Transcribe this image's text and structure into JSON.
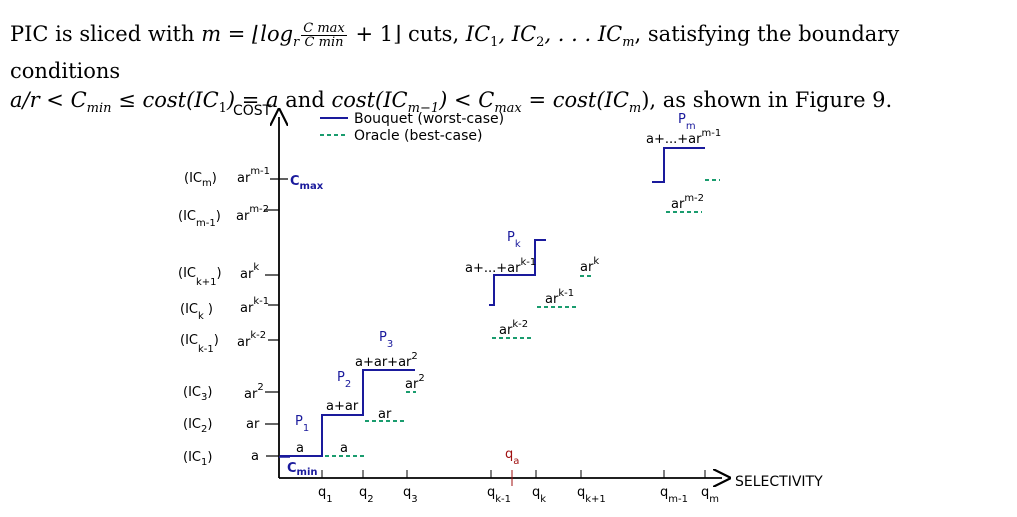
{
  "paragraph": {
    "t1": "PIC is sliced with ",
    "t2": "m = ⌊log",
    "t3": "r",
    "frac_num": "C max",
    "frac_den": "C min",
    "t4": " + 1⌋ cuts, ",
    "t5": "IC",
    "t6": "1",
    "t7": ", IC",
    "t8": "2",
    "t9": ", . . . IC",
    "t10": "m",
    "t11": ", satisfying the boundary conditions",
    "l2a": "a/r < C",
    "l2b": "min",
    "l2c": " ≤ cost(IC",
    "l2d": "1",
    "l2e": ") = a",
    "l2f": " and ",
    "l2g": "cost(IC",
    "l2h": "m−1",
    "l2i": ") < C",
    "l2j": "max",
    "l2k": " = cost(IC",
    "l2l": "m",
    "l2m": "), as shown in Figure 9."
  },
  "figure": {
    "y_axis_label": "COST",
    "x_axis_label": "SELECTIVITY",
    "legend": {
      "bouquet": "Bouquet (worst-case)",
      "oracle": "Oracle (best-case)"
    },
    "colors": {
      "bouquet": "#1a1a9c",
      "oracle": "#1a9c6e",
      "qa": "#a01010"
    },
    "cmax": {
      "main": "C",
      "sub": "max"
    },
    "cmin": {
      "main": "C",
      "sub": "min"
    },
    "ic_labels": [
      {
        "main": "(IC",
        "sub": "m",
        "close": ")"
      },
      {
        "main": "(IC",
        "sub": "m-1",
        "close": ")"
      },
      {
        "main": "(IC",
        "sub": "k+1",
        "close": ")"
      },
      {
        "main": "(IC",
        "sub": "k",
        "close": " )"
      },
      {
        "main": "(IC",
        "sub": "k-1",
        "close": ")"
      },
      {
        "main": "(IC",
        "sub": "3",
        "close": ")"
      },
      {
        "main": "(IC",
        "sub": "2",
        "close": ")"
      },
      {
        "main": "(IC",
        "sub": "1",
        "close": ")"
      }
    ],
    "cost_ticks": [
      {
        "base": "ar",
        "sup": "m-1"
      },
      {
        "base": "ar",
        "sup": "m-2"
      },
      {
        "base": "ar",
        "sup": "k"
      },
      {
        "base": "ar",
        "sup": "k-1"
      },
      {
        "base": "ar",
        "sup": "k-2"
      },
      {
        "base": "ar",
        "sup": "2"
      },
      {
        "base": "ar",
        "sup": ""
      },
      {
        "base": "a",
        "sup": ""
      }
    ],
    "x_ticks": [
      {
        "base": "q",
        "sub": "1"
      },
      {
        "base": "q",
        "sub": "2"
      },
      {
        "base": "q",
        "sub": "3"
      },
      {
        "base": "q",
        "sub": "k-1"
      },
      {
        "base": "q",
        "sub": "k"
      },
      {
        "base": "q",
        "sub": "k+1"
      },
      {
        "base": "q",
        "sub": "m-1"
      },
      {
        "base": "q",
        "sub": "m"
      }
    ],
    "plans": [
      {
        "base": "P",
        "sub": "1"
      },
      {
        "base": "P",
        "sub": "2"
      },
      {
        "base": "P",
        "sub": "3"
      },
      {
        "base": "P",
        "sub": "k"
      },
      {
        "base": "P",
        "sub": "m"
      }
    ],
    "annotations": {
      "a_bouquet": "a",
      "a_oracle": "a",
      "a_plus_ar": "a+ar",
      "ar_oracle": "ar",
      "a_ar_ar2": {
        "base": "a+ar+ar",
        "sup": "2"
      },
      "ar2_oracle": {
        "base": "ar",
        "sup": "2"
      },
      "sum_k": {
        "base": "a+...+ar",
        "sup": "k-1"
      },
      "ark_oracle": {
        "base": "ar",
        "sup": "k"
      },
      "ark1_oracle": {
        "base": "ar",
        "sup": "k-1"
      },
      "ark2_oracle": {
        "base": "ar",
        "sup": "k-2"
      },
      "sum_m": {
        "base": "a+...+ar",
        "sup": "m-1"
      },
      "arm2_oracle": {
        "base": "ar",
        "sup": "m-2"
      }
    },
    "qa": {
      "base": "q",
      "sub": "a"
    }
  }
}
